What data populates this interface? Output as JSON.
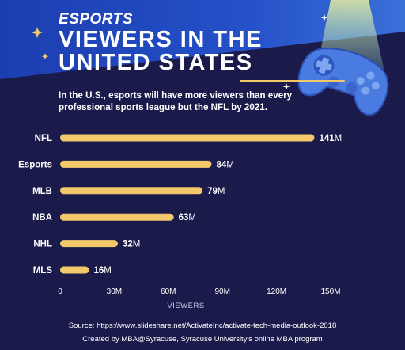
{
  "header": {
    "kicker": "ESPORTS",
    "title": "VIEWERS IN THE UNITED STATES",
    "subtitle": "In the U.S., esports will have more viewers than every professional sports league but the NFL by 2021."
  },
  "colors": {
    "background": "#1b1b4b",
    "header_blue": "#1a3fa8",
    "bar": "#f2c86a",
    "accent": "#f2c86a"
  },
  "icons": [
    "game-controller-icon",
    "sparkle-icon"
  ],
  "chart_data": {
    "type": "bar",
    "orientation": "horizontal",
    "categories": [
      "NFL",
      "Esports",
      "MLB",
      "NBA",
      "NHL",
      "MLS"
    ],
    "values": [
      141,
      84,
      79,
      63,
      32,
      16
    ],
    "value_labels": [
      "141",
      "84",
      "79",
      "63",
      "32",
      "16"
    ],
    "value_unit": "M",
    "xlabel": "VIEWERS",
    "xlim": [
      0,
      150
    ],
    "xticks": [
      0,
      30,
      60,
      90,
      120,
      150
    ],
    "xtick_labels": [
      "0",
      "30M",
      "60M",
      "90M",
      "120M",
      "150M"
    ],
    "grid": false,
    "legend": "none"
  },
  "footer": {
    "source": "Source: https://www.slideshare.net/ActivateInc/activate-tech-media-outlook-2018",
    "credit": "Created by MBA@Syracuse, Syracuse University's online MBA program"
  }
}
